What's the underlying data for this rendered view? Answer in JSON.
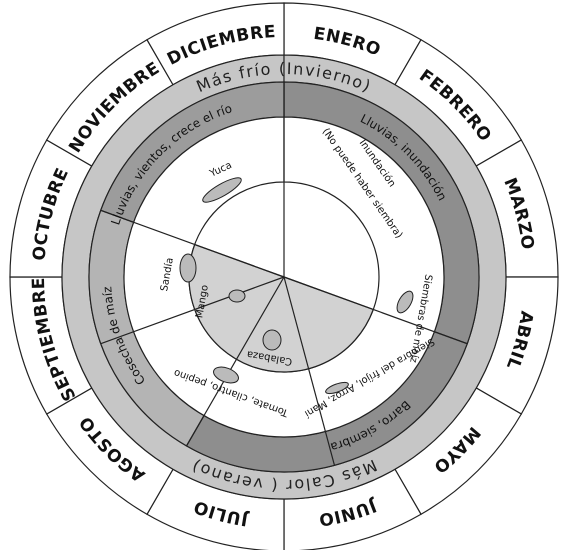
{
  "months": [
    "ENERO",
    "FEBRERO",
    "MARZO",
    "ABRIL",
    "MAYO",
    "JUNIO",
    "JULIO",
    "AGOSTO",
    "SEPTIEMBRE",
    "OCTUBRE",
    "NOVIEMBRE",
    "DICIEMBRE"
  ],
  "seasons": {
    "cold": "Más frío (Invierno)",
    "hot": "Más Calor ( verano)"
  },
  "conditions": [
    "Lluvias, vientos, crece el río",
    "Lluvias, inundación",
    "Barro, siembra",
    "Cosecha de maíz"
  ],
  "activities": {
    "yuca": "Yuca",
    "flood": "Inundación",
    "no_sowing": "(No puede haber siembra)",
    "maize_sowing": "Siembras de maíz",
    "beans": "Siembra del fríjol, Arroz, Maní",
    "tomato": "Tomate, cilantro, pepino",
    "squash": "Calabaza",
    "mango": "Mango",
    "watermelon": "Sandía"
  }
}
